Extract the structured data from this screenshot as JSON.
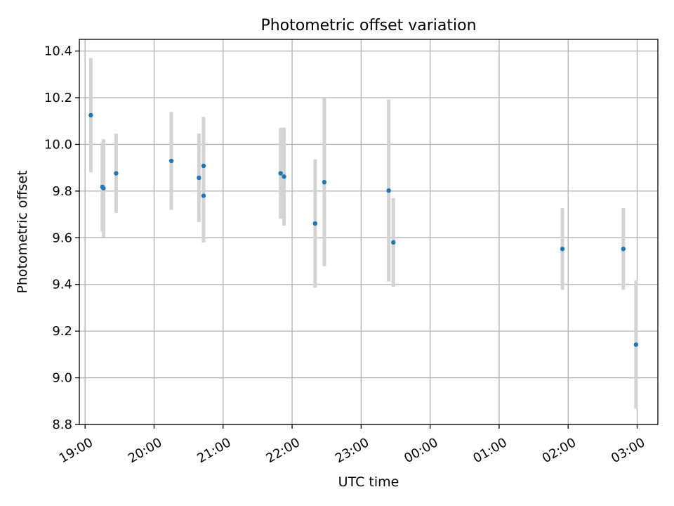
{
  "chart_data": {
    "type": "scatter",
    "title": "Photometric offset variation",
    "xlabel": "UTC time",
    "ylabel": "Photometric offset",
    "grid": true,
    "x_ticks": [
      "19:00",
      "20:00",
      "21:00",
      "22:00",
      "23:00",
      "00:00",
      "01:00",
      "02:00",
      "03:00"
    ],
    "y_ticks": [
      "8.8",
      "9.0",
      "9.2",
      "9.4",
      "9.6",
      "9.8",
      "10.0",
      "10.2",
      "10.4"
    ],
    "x_range": [
      "18:55",
      "03:18"
    ],
    "ylim": [
      8.8,
      10.45
    ],
    "series": [
      {
        "color": "#1f77b4",
        "errorbar_color": "#d3d3d3",
        "points": [
          {
            "time": "19:05",
            "y": 10.125,
            "yerr": 0.245
          },
          {
            "time": "19:15",
            "y": 9.818,
            "yerr": 0.19
          },
          {
            "time": "19:16",
            "y": 9.812,
            "yerr": 0.21
          },
          {
            "time": "19:27",
            "y": 9.876,
            "yerr": 0.17
          },
          {
            "time": "20:15",
            "y": 9.929,
            "yerr": 0.21
          },
          {
            "time": "20:39",
            "y": 9.857,
            "yerr": 0.19
          },
          {
            "time": "20:43",
            "y": 9.908,
            "yerr": 0.21
          },
          {
            "time": "20:43",
            "y": 9.78,
            "yerr": 0.2
          },
          {
            "time": "21:50",
            "y": 9.876,
            "yerr": 0.195
          },
          {
            "time": "21:53",
            "y": 9.862,
            "yerr": 0.21
          },
          {
            "time": "22:20",
            "y": 9.661,
            "yerr": 0.275
          },
          {
            "time": "22:28",
            "y": 9.838,
            "yerr": 0.36
          },
          {
            "time": "23:24",
            "y": 9.802,
            "yerr": 0.39
          },
          {
            "time": "23:28",
            "y": 9.58,
            "yerr": 0.19
          },
          {
            "time": "01:55",
            "y": 9.552,
            "yerr": 0.175
          },
          {
            "time": "02:48",
            "y": 9.552,
            "yerr": 0.175
          },
          {
            "time": "02:59",
            "y": 9.142,
            "yerr": 0.275
          }
        ]
      }
    ]
  }
}
